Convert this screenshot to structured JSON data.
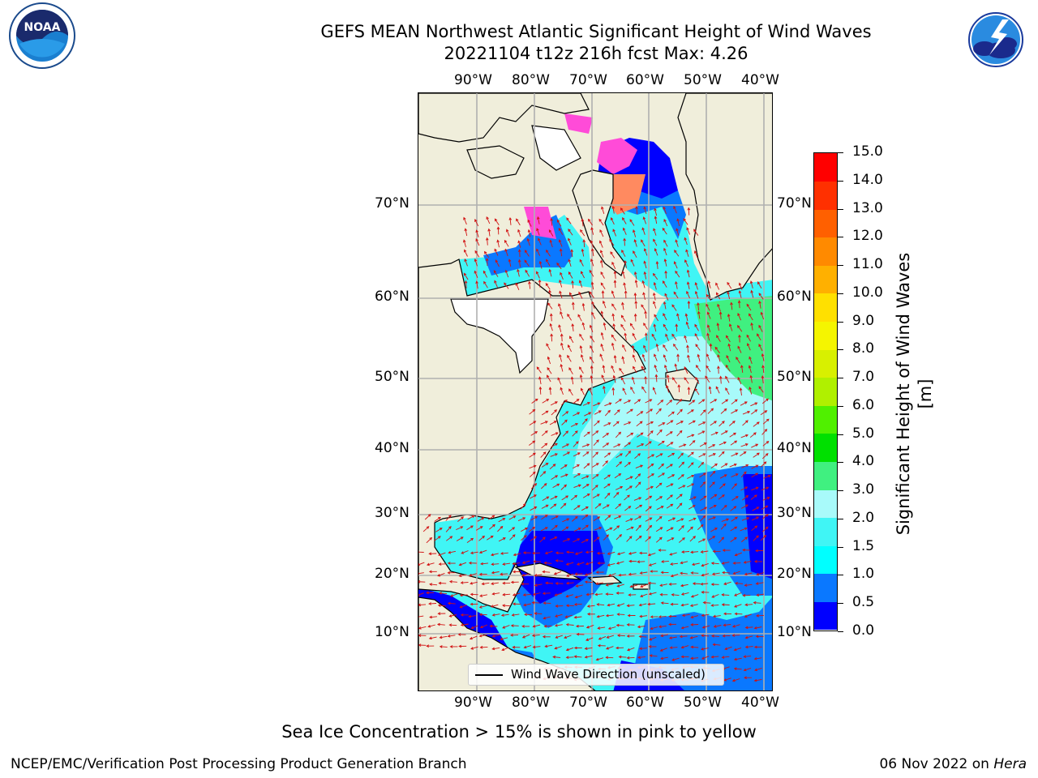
{
  "header": {
    "title_line1": "GEFS MEAN Northwest Atlantic Significant Height of Wind Waves",
    "title_line2": "20221104 t12z 216h fcst   Max: 4.26"
  },
  "logos": {
    "left": "NOAA",
    "left_ring_text": "NATIONAL OCEANIC AND ATMOSPHERIC ADMINISTRATION · U.S. DEPARTMENT OF COMMERCE",
    "right_ring_text": "NATIONAL WEATHER SERVICE"
  },
  "map": {
    "lon_labels": [
      "90°W",
      "80°W",
      "70°W",
      "60°W",
      "50°W",
      "40°W"
    ],
    "lat_labels": [
      "70°N",
      "60°N",
      "50°N",
      "40°N",
      "30°N",
      "20°N",
      "10°N"
    ],
    "colors": {
      "land": "#f0eedb",
      "ice_free_ocean_white": "#ffffff",
      "grid": "#b0b0b0",
      "arrow": "#d11111"
    }
  },
  "legend": {
    "label": "Wind Wave Direction (unscaled)"
  },
  "colorbar": {
    "label": "Significant Height of Wind Waves [m]",
    "ticks": [
      "0.0",
      "0.5",
      "1.0",
      "1.5",
      "2.0",
      "3.0",
      "4.0",
      "5.0",
      "6.0",
      "7.0",
      "8.0",
      "9.0",
      "10.0",
      "11.0",
      "12.0",
      "13.0",
      "14.0",
      "15.0"
    ],
    "colors": [
      "#0000ff",
      "#0a78ff",
      "#00ffff",
      "#40f5f5",
      "#a8fafa",
      "#40f080",
      "#00e000",
      "#50f000",
      "#b0f000",
      "#d8f000",
      "#f5f500",
      "#ffe000",
      "#ffb000",
      "#ff8a00",
      "#ff6000",
      "#ff3000",
      "#ff0000"
    ]
  },
  "note": "Sea Ice Concentration > 15% is shown in pink to yellow",
  "footer": {
    "left": "NCEP/EMC/Verification Post Processing Product Generation Branch",
    "date": "06 Nov 2022 on ",
    "host": "Hera"
  }
}
